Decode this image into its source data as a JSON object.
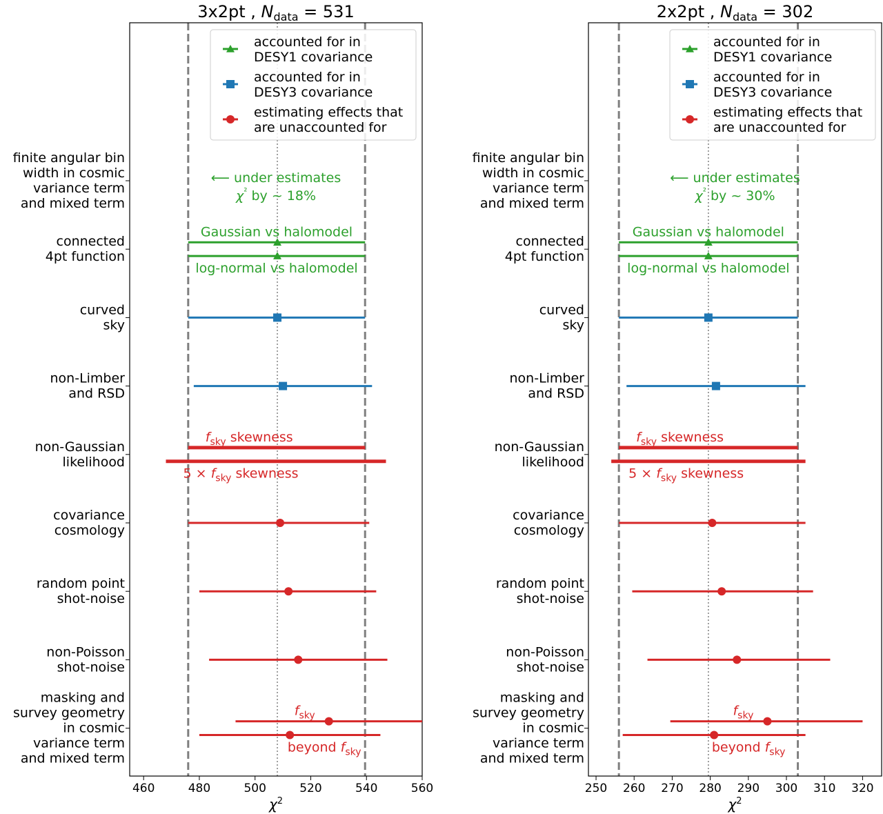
{
  "chart_data": [
    {
      "type": "errorbar",
      "title": "3x2pt , N_data = 531",
      "title_main": "3x2pt , ",
      "title_N": "N",
      "title_sub": "data",
      "title_value": "= 531",
      "xlabel": "χ²",
      "xlim": [
        455,
        560
      ],
      "xticks": [
        460,
        480,
        500,
        520,
        540,
        560
      ],
      "vlines": {
        "dashed": [
          476,
          539.5
        ],
        "dotted": 508
      },
      "annotation_under": [
        "⟵ under estimates",
        "χ² by  ~ 18%"
      ],
      "rows": [
        {
          "label": [
            "finite angular bin",
            "width in cosmic",
            "variance term",
            "and mixed term"
          ]
        },
        {
          "label": [
            "connected",
            "4pt function"
          ]
        },
        {
          "label": [
            "curved",
            "sky"
          ]
        },
        {
          "label": [
            "non-Limber",
            "and RSD"
          ]
        },
        {
          "label": [
            "non-Gaussian",
            "likelihood"
          ]
        },
        {
          "label": [
            "covariance",
            "cosmology"
          ]
        },
        {
          "label": [
            "random point",
            "shot-noise"
          ]
        },
        {
          "label": [
            "non-Poisson",
            "shot-noise"
          ]
        },
        {
          "label": [
            "masking and",
            "survey geometry",
            "in cosmic",
            "variance term",
            "and mixed term"
          ]
        }
      ],
      "points": [
        {
          "row": 1,
          "off": -0.1,
          "x": 508,
          "lo": 476,
          "hi": 539.5,
          "marker": "triangle",
          "color": "green",
          "label": "Gaussian vs halomodel",
          "lpos": "above"
        },
        {
          "row": 1,
          "off": 0.1,
          "x": 508,
          "lo": 476,
          "hi": 539.5,
          "marker": "triangle",
          "color": "green",
          "label": "log-normal vs halomodel",
          "lpos": "below"
        },
        {
          "row": 2,
          "off": 0,
          "x": 508,
          "lo": 476,
          "hi": 539.5,
          "marker": "square",
          "color": "blue"
        },
        {
          "row": 3,
          "off": 0,
          "x": 510,
          "lo": 478,
          "hi": 542,
          "marker": "square",
          "color": "blue"
        },
        {
          "row": 4,
          "off": -0.1,
          "x": null,
          "lo": 476,
          "hi": 539.5,
          "marker": "none",
          "color": "red",
          "thick": true,
          "label_pre": "",
          "label_f": "f",
          "label_sub": "sky",
          "label_post": " skewness",
          "lpos": "above"
        },
        {
          "row": 4,
          "off": 0.1,
          "x": null,
          "lo": 468,
          "hi": 547,
          "marker": "none",
          "color": "red",
          "thick": true,
          "label_pre": "5 × ",
          "label_f": "f",
          "label_sub": "sky",
          "label_post": " skewness",
          "lpos": "below"
        },
        {
          "row": 5,
          "off": 0,
          "x": 509,
          "lo": 476,
          "hi": 541,
          "marker": "circle",
          "color": "red"
        },
        {
          "row": 6,
          "off": 0,
          "x": 512,
          "lo": 480,
          "hi": 543.5,
          "marker": "circle",
          "color": "red"
        },
        {
          "row": 7,
          "off": 0,
          "x": 515.5,
          "lo": 483.5,
          "hi": 547.5,
          "marker": "circle",
          "color": "red"
        },
        {
          "row": 8,
          "off": -0.1,
          "x": 526.5,
          "lo": 493,
          "hi": 560,
          "marker": "circle",
          "color": "red",
          "label_pre": "",
          "label_f": "f",
          "label_sub": "sky",
          "label_post": "",
          "lpos": "above"
        },
        {
          "row": 8,
          "off": 0.1,
          "x": 512.5,
          "lo": 480,
          "hi": 545,
          "marker": "circle",
          "color": "red",
          "label_pre": "beyond ",
          "label_f": "f",
          "label_sub": "sky",
          "label_post": "",
          "lpos": "below"
        }
      ]
    },
    {
      "type": "errorbar",
      "title": "2x2pt , N_data = 302",
      "title_main": "2x2pt , ",
      "title_N": "N",
      "title_sub": "data",
      "title_value": "= 302",
      "xlabel": "χ²",
      "xlim": [
        248,
        325
      ],
      "xticks": [
        250,
        260,
        270,
        280,
        290,
        300,
        310,
        320
      ],
      "vlines": {
        "dashed": [
          256,
          303
        ],
        "dotted": 279.5
      },
      "annotation_under": [
        "⟵ under estimates",
        "χ² by  ~ 30%"
      ],
      "rows": [
        {
          "label": [
            "finite angular bin",
            "width in cosmic",
            "variance term",
            "and mixed term"
          ]
        },
        {
          "label": [
            "connected",
            "4pt function"
          ]
        },
        {
          "label": [
            "curved",
            "sky"
          ]
        },
        {
          "label": [
            "non-Limber",
            "and RSD"
          ]
        },
        {
          "label": [
            "non-Gaussian",
            "likelihood"
          ]
        },
        {
          "label": [
            "covariance",
            "cosmology"
          ]
        },
        {
          "label": [
            "random point",
            "shot-noise"
          ]
        },
        {
          "label": [
            "non-Poisson",
            "shot-noise"
          ]
        },
        {
          "label": [
            "masking and",
            "survey geometry",
            "in cosmic",
            "variance term",
            "and mixed term"
          ]
        }
      ],
      "points": [
        {
          "row": 1,
          "off": -0.1,
          "x": 279.5,
          "lo": 256,
          "hi": 303,
          "marker": "triangle",
          "color": "green",
          "label": "Gaussian vs halomodel",
          "lpos": "above"
        },
        {
          "row": 1,
          "off": 0.1,
          "x": 279.5,
          "lo": 256,
          "hi": 303,
          "marker": "triangle",
          "color": "green",
          "label": "log-normal vs halomodel",
          "lpos": "below"
        },
        {
          "row": 2,
          "off": 0,
          "x": 279.5,
          "lo": 256,
          "hi": 303,
          "marker": "square",
          "color": "blue"
        },
        {
          "row": 3,
          "off": 0,
          "x": 281.5,
          "lo": 258,
          "hi": 305,
          "marker": "square",
          "color": "blue"
        },
        {
          "row": 4,
          "off": -0.1,
          "x": null,
          "lo": 256,
          "hi": 303,
          "marker": "none",
          "color": "red",
          "thick": true,
          "label_pre": "",
          "label_f": "f",
          "label_sub": "sky",
          "label_post": " skewness",
          "lpos": "above"
        },
        {
          "row": 4,
          "off": 0.1,
          "x": null,
          "lo": 254,
          "hi": 305,
          "marker": "none",
          "color": "red",
          "thick": true,
          "label_pre": "5 × ",
          "label_f": "f",
          "label_sub": "sky",
          "label_post": " skewness",
          "lpos": "below"
        },
        {
          "row": 5,
          "off": 0,
          "x": 280.5,
          "lo": 256,
          "hi": 305,
          "marker": "circle",
          "color": "red"
        },
        {
          "row": 6,
          "off": 0,
          "x": 283,
          "lo": 259.5,
          "hi": 307,
          "marker": "circle",
          "color": "red"
        },
        {
          "row": 7,
          "off": 0,
          "x": 287,
          "lo": 263.5,
          "hi": 311.5,
          "marker": "circle",
          "color": "red"
        },
        {
          "row": 8,
          "off": -0.1,
          "x": 295,
          "lo": 269.5,
          "hi": 320,
          "marker": "circle",
          "color": "red",
          "label_pre": "",
          "label_f": "f",
          "label_sub": "sky",
          "label_post": "",
          "lpos": "above"
        },
        {
          "row": 8,
          "off": 0.1,
          "x": 281,
          "lo": 257,
          "hi": 305,
          "marker": "circle",
          "color": "red",
          "label_pre": "beyond ",
          "label_f": "f",
          "label_sub": "sky",
          "label_post": "",
          "lpos": "below"
        }
      ]
    }
  ],
  "legend": {
    "placement": "upper right",
    "entries": [
      {
        "marker": "triangle",
        "color": "green",
        "lines": [
          "accounted for in",
          "DESY1 covariance"
        ]
      },
      {
        "marker": "square",
        "color": "blue",
        "lines": [
          "accounted for in",
          "DESY3 covariance"
        ]
      },
      {
        "marker": "circle",
        "color": "red",
        "lines": [
          "estimating effects that",
          "are unaccounted for"
        ]
      }
    ]
  },
  "colors": {
    "green": "#2ca02c",
    "blue": "#1f77b4",
    "red": "#d62728",
    "gray": "#7f7f7f"
  }
}
